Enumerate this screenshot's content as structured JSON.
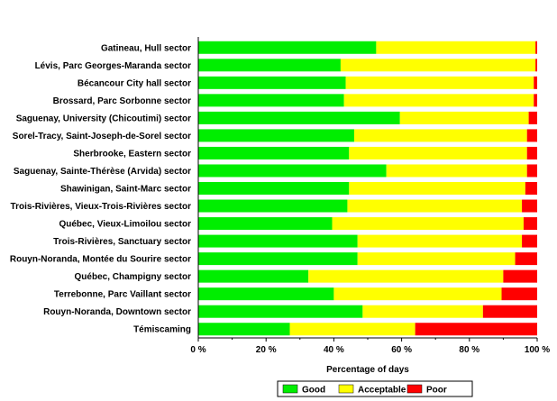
{
  "chart_data": {
    "type": "bar",
    "orientation": "horizontal",
    "stacked": true,
    "categories": [
      "Gatineau, Hull sector",
      "Lévis, Parc Georges-Maranda sector",
      "Bécancour City hall sector",
      "Brossard, Parc Sorbonne sector",
      "Saguenay, University (Chicoutimi) sector",
      "Sorel-Tracy, Saint-Joseph-de-Sorel sector",
      "Sherbrooke, Eastern sector",
      "Saguenay, Sainte-Thérèse (Arvida) sector",
      "Shawinigan, Saint-Marc sector",
      "Trois-Rivières, Vieux-Trois-Rivières sector",
      "Québec, Vieux-Limoilou sector",
      "Trois-Rivières, Sanctuary sector",
      "Rouyn-Noranda, Montée du Sourire sector",
      "Québec, Champigny sector",
      "Terrebonne, Parc Vaillant sector",
      "Rouyn-Noranda,  Downtown sector",
      "Témiscaming"
    ],
    "series": [
      {
        "name": "Good",
        "color": "#00ee00",
        "values": [
          52.5,
          42,
          43.5,
          43,
          59.5,
          46,
          44.5,
          55.5,
          44.5,
          44,
          39.5,
          47,
          47,
          32.5,
          40,
          48.5,
          27
        ]
      },
      {
        "name": "Acceptable",
        "color": "#ffff00",
        "values": [
          47,
          57.5,
          55.5,
          56,
          38,
          51,
          52.5,
          41.5,
          52,
          51.5,
          56.5,
          48.5,
          46.5,
          57.5,
          49.5,
          35.5,
          37
        ]
      },
      {
        "name": "Poor",
        "color": "#ff0000",
        "values": [
          0.5,
          0.5,
          1,
          1,
          2.5,
          3,
          3,
          3,
          3.5,
          4.5,
          4,
          4.5,
          6.5,
          10,
          10.5,
          16,
          36
        ]
      }
    ],
    "xlabel": "Percentage of days",
    "ylabel": "",
    "xlim": [
      0,
      100
    ],
    "xticks": [
      "0 %",
      "20 %",
      "40 %",
      "60 %",
      "80 %",
      "100 %"
    ],
    "grid": false,
    "legend": {
      "position": "bottom",
      "entries": [
        "Good",
        "Acceptable",
        "Poor"
      ]
    }
  }
}
